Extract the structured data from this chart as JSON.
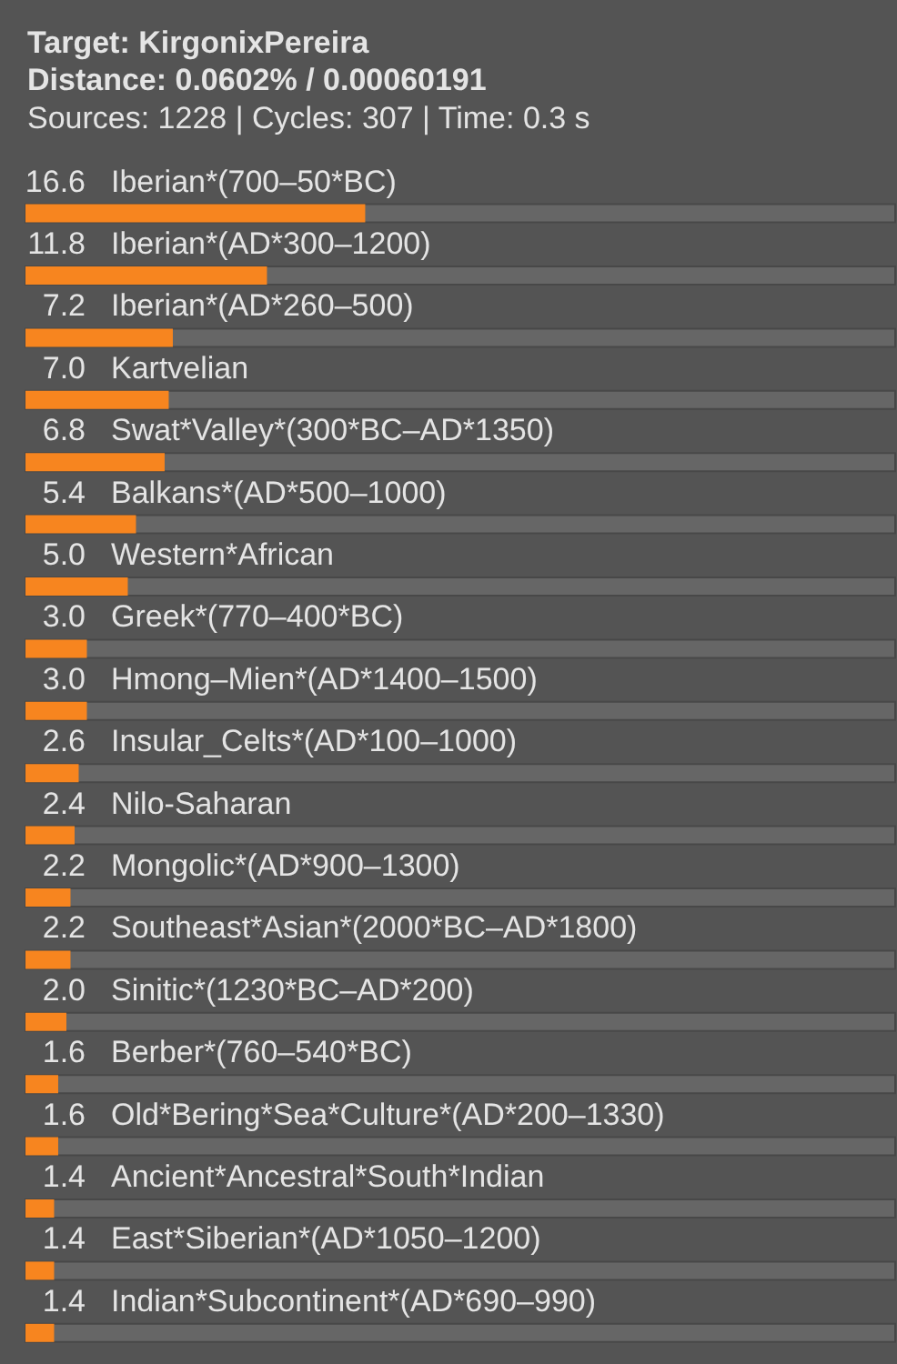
{
  "chart_data": {
    "type": "bar",
    "orientation": "horizontal",
    "title": "Target: KirgonixPereira",
    "subtitle": "Distance: 0.0602% / 0.00060191",
    "annotations": [
      "Sources: 1228 | Cycles: 307 | Time: 0.3 s"
    ],
    "categories": [
      "Iberian*(700–50*BC)",
      "Iberian*(AD*300–1200)",
      "Iberian*(AD*260–500)",
      "Kartvelian",
      "Swat*Valley*(300*BC–AD*1350)",
      "Balkans*(AD*500–1000)",
      "Western*African",
      "Greek*(770–400*BC)",
      "Hmong–Mien*(AD*1400–1500)",
      "Insular_Celts*(AD*100–1000)",
      "Nilo-Saharan",
      "Mongolic*(AD*900–1300)",
      "Southeast*Asian*(2000*BC–AD*1800)",
      "Sinitic*(1230*BC–AD*200)",
      "Berber*(760–540*BC)",
      "Old*Bering*Sea*Culture*(AD*200–1330)",
      "Ancient*Ancestral*South*Indian",
      "East*Siberian*(AD*1050–1200)",
      "Indian*Subcontinent*(AD*690–990)"
    ],
    "values": [
      16.6,
      11.8,
      7.2,
      7.0,
      6.8,
      5.4,
      5.0,
      3.0,
      3.0,
      2.6,
      2.4,
      2.2,
      2.2,
      2.0,
      1.6,
      1.6,
      1.4,
      1.4,
      1.4
    ],
    "value_labels": [
      "16.6",
      "11.8",
      "7.2",
      "7.0",
      "6.8",
      "5.4",
      "5.0",
      "3.0",
      "3.0",
      "2.6",
      "2.4",
      "2.2",
      "2.2",
      "2.0",
      "1.6",
      "1.6",
      "1.4",
      "1.4",
      "1.4"
    ],
    "color": "#f7851f",
    "tick_labels": "y"
  }
}
